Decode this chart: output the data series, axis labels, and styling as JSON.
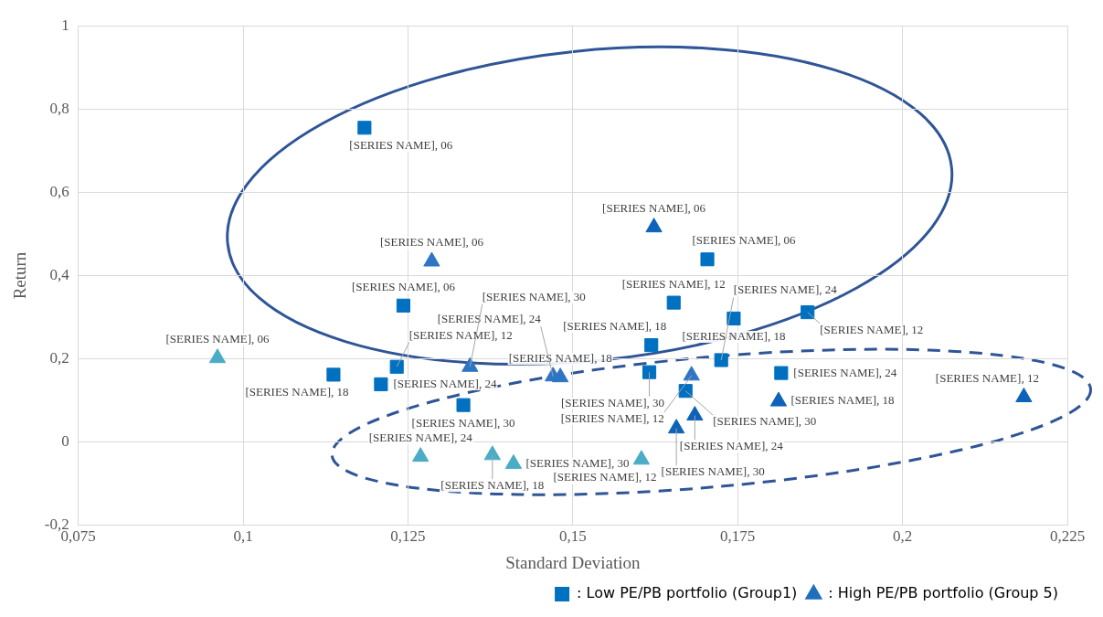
{
  "chart_data": {
    "type": "scatter",
    "xlabel": "Standard Deviation",
    "ylabel": "Return",
    "xlim": [
      0.075,
      0.225
    ],
    "ylim": [
      -0.2,
      1
    ],
    "xticks": [
      {
        "value": 0.075,
        "label": "0,075"
      },
      {
        "value": 0.1,
        "label": "0,1"
      },
      {
        "value": 0.125,
        "label": "0,125"
      },
      {
        "value": 0.15,
        "label": "0,15"
      },
      {
        "value": 0.175,
        "label": "0,175"
      },
      {
        "value": 0.2,
        "label": "0,2"
      },
      {
        "value": 0.225,
        "label": "0,225"
      }
    ],
    "yticks": [
      {
        "value": -0.2,
        "label": "-0,2"
      },
      {
        "value": 0,
        "label": "0"
      },
      {
        "value": 0.2,
        "label": "0,2"
      },
      {
        "value": 0.4,
        "label": "0,4"
      },
      {
        "value": 0.6,
        "label": "0,6"
      },
      {
        "value": 0.8,
        "label": "0,8"
      },
      {
        "value": 1,
        "label": "1"
      }
    ],
    "grid": true,
    "legend": "bottom right",
    "series": [
      {
        "name": ": Low PE/PB portfolio (Group1)",
        "marker": "square",
        "color": "#0070c0",
        "x": [
          0.1184,
          0.1704,
          0.1243,
          0.1653,
          0.1856,
          0.1233,
          0.1744,
          0.1619,
          0.1137,
          0.1725,
          0.1816,
          0.1209,
          0.1616,
          0.1671,
          0.1334
        ],
        "values": [
          0.755,
          0.439,
          0.328,
          0.335,
          0.312,
          0.181,
          0.297,
          0.233,
          0.162,
          0.197,
          0.166,
          0.139,
          0.168,
          0.123,
          0.089
        ]
      },
      {
        "name": ": High PE/PB portfolio (Group 5)",
        "marker": "triangle",
        "color": "#1f6fbf",
        "x": [
          0.1286,
          0.168,
          0.1481,
          0.147,
          0.1344,
          0.1623,
          0.2184,
          0.1812,
          0.1685,
          0.1657,
          0.0961,
          0.1604,
          0.1378,
          0.1269,
          0.141
        ],
        "values": [
          0.434,
          0.16,
          0.156,
          0.158,
          0.181,
          0.516,
          0.108,
          0.098,
          0.064,
          0.033,
          0.202,
          -0.042,
          -0.031,
          -0.035,
          -0.052
        ],
        "colors": [
          "#2e75c4",
          "#2e75c4",
          "#2e75c4",
          "#2e75c4",
          "#2e75c4",
          "#0e63b8",
          "#0e63b8",
          "#0e63b8",
          "#0e63b8",
          "#0e63b8",
          "#4bacc6",
          "#4bacc6",
          "#4bacc6",
          "#4bacc6",
          "#4bacc6"
        ]
      }
    ],
    "annotations": [
      {
        "text": "[SERIES NAME], 06",
        "x": 0.1184,
        "y": 0.755
      },
      {
        "text": "[SERIES NAME], 06",
        "x": 0.1704,
        "y": 0.439
      },
      {
        "text": "[SERIES NAME], 06",
        "x": 0.1243,
        "y": 0.328
      },
      {
        "text": "[SERIES NAME], 12",
        "x": 0.1653,
        "y": 0.335
      },
      {
        "text": "[SERIES NAME], 12",
        "x": 0.1856,
        "y": 0.312
      },
      {
        "text": "[SERIES NAME], 12",
        "x": 0.1233,
        "y": 0.181
      },
      {
        "text": "[SERIES NAME], 18",
        "x": 0.1744,
        "y": 0.297
      },
      {
        "text": "[SERIES NAME], 18",
        "x": 0.1619,
        "y": 0.233
      },
      {
        "text": "[SERIES NAME], 18",
        "x": 0.1137,
        "y": 0.162
      },
      {
        "text": "[SERIES NAME], 24",
        "x": 0.1725,
        "y": 0.197
      },
      {
        "text": "[SERIES NAME], 24",
        "x": 0.1816,
        "y": 0.166
      },
      {
        "text": "[SERIES NAME], 24",
        "x": 0.1209,
        "y": 0.139
      },
      {
        "text": "[SERIES NAME], 30",
        "x": 0.1616,
        "y": 0.168
      },
      {
        "text": "[SERIES NAME], 30",
        "x": 0.1671,
        "y": 0.123
      },
      {
        "text": "[SERIES NAME], 30",
        "x": 0.1334,
        "y": 0.089
      },
      {
        "text": "[SERIES NAME], 06",
        "x": 0.1286,
        "y": 0.434
      },
      {
        "text": "[SERIES NAME], 12",
        "x": 0.168,
        "y": 0.16
      },
      {
        "text": "[SERIES NAME], 18",
        "x": 0.1481,
        "y": 0.156
      },
      {
        "text": "[SERIES NAME], 24",
        "x": 0.147,
        "y": 0.158
      },
      {
        "text": "[SERIES NAME], 30",
        "x": 0.1344,
        "y": 0.181
      },
      {
        "text": "[SERIES NAME], 06",
        "x": 0.1623,
        "y": 0.516
      },
      {
        "text": "[SERIES NAME], 12",
        "x": 0.2184,
        "y": 0.108
      },
      {
        "text": "[SERIES NAME], 18",
        "x": 0.1812,
        "y": 0.098
      },
      {
        "text": "[SERIES NAME], 24",
        "x": 0.1685,
        "y": 0.064
      },
      {
        "text": "[SERIES NAME], 30",
        "x": 0.1657,
        "y": 0.033
      },
      {
        "text": "[SERIES NAME], 06",
        "x": 0.0961,
        "y": 0.202
      },
      {
        "text": "[SERIES NAME], 12",
        "x": 0.1604,
        "y": -0.042
      },
      {
        "text": "[SERIES NAME], 18",
        "x": 0.1378,
        "y": -0.031
      },
      {
        "text": "[SERIES NAME], 24",
        "x": 0.1269,
        "y": -0.035
      },
      {
        "text": "[SERIES NAME], 30",
        "x": 0.141,
        "y": -0.052
      }
    ]
  }
}
